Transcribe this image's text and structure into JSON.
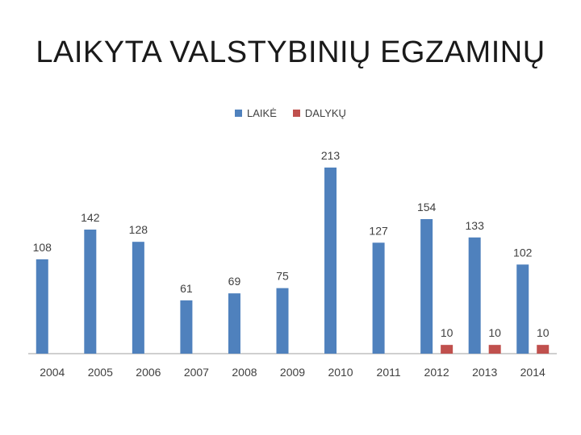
{
  "slide": {
    "title": "LAIKYTA VALSTYBINIŲ EGZAMINŲ"
  },
  "colors": {
    "laike": "#4F81BD",
    "dalyku": "#C0504D",
    "axis": "#bfbfbf"
  },
  "legend": [
    {
      "name": "LAIKĖ",
      "color": "#4F81BD"
    },
    {
      "name": "DALYKŲ",
      "color": "#C0504D"
    }
  ],
  "chart_data": {
    "type": "bar",
    "title": "",
    "xlabel": "",
    "ylabel": "",
    "categories": [
      "2004",
      "2005",
      "2006",
      "2007",
      "2008",
      "2009",
      "2010",
      "2011",
      "2012",
      "2013",
      "2014"
    ],
    "series": [
      {
        "name": "LAIKĖ",
        "color": "#4F81BD",
        "values": [
          108,
          142,
          128,
          61,
          69,
          75,
          213,
          127,
          154,
          133,
          102
        ]
      },
      {
        "name": "DALYKŲ",
        "color": "#C0504D",
        "values": [
          null,
          null,
          null,
          null,
          null,
          null,
          null,
          null,
          10,
          10,
          10
        ]
      }
    ],
    "ylim": [
      0,
      213
    ],
    "grid": false,
    "legend_position": "top"
  }
}
